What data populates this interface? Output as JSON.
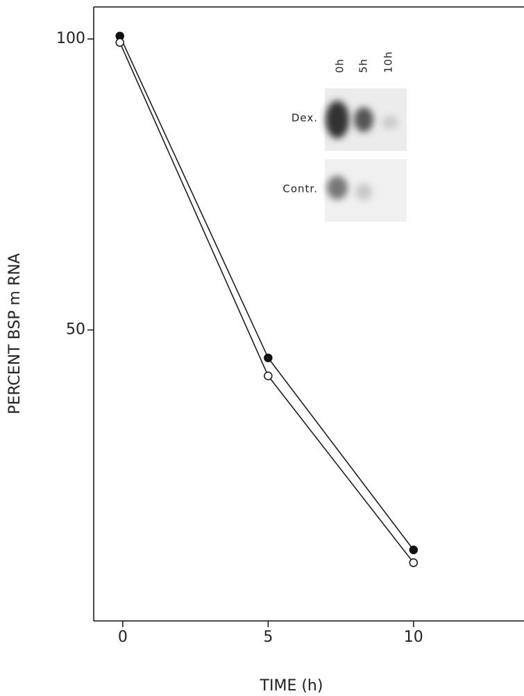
{
  "chart_data": {
    "type": "line",
    "x_label": "TIME (h)",
    "y_label": "PERCENT BSP m RNA",
    "x": [
      -0.1,
      5,
      10
    ],
    "series": [
      {
        "marker": "filled",
        "color": "#111111",
        "values": [
          100.5,
          45.2,
          12.2
        ]
      },
      {
        "marker": "open",
        "color": "#111111",
        "values": [
          99.4,
          42.1,
          10.0
        ]
      }
    ],
    "xlim": [
      -1,
      13.8
    ],
    "ylim": [
      0,
      105.5
    ],
    "xticks": [
      0,
      5,
      10
    ],
    "yticks": [
      50,
      100
    ],
    "inset": {
      "lanes": [
        "0h",
        "5h",
        "10h"
      ],
      "rows": [
        "Dex.",
        "Contr."
      ]
    }
  }
}
